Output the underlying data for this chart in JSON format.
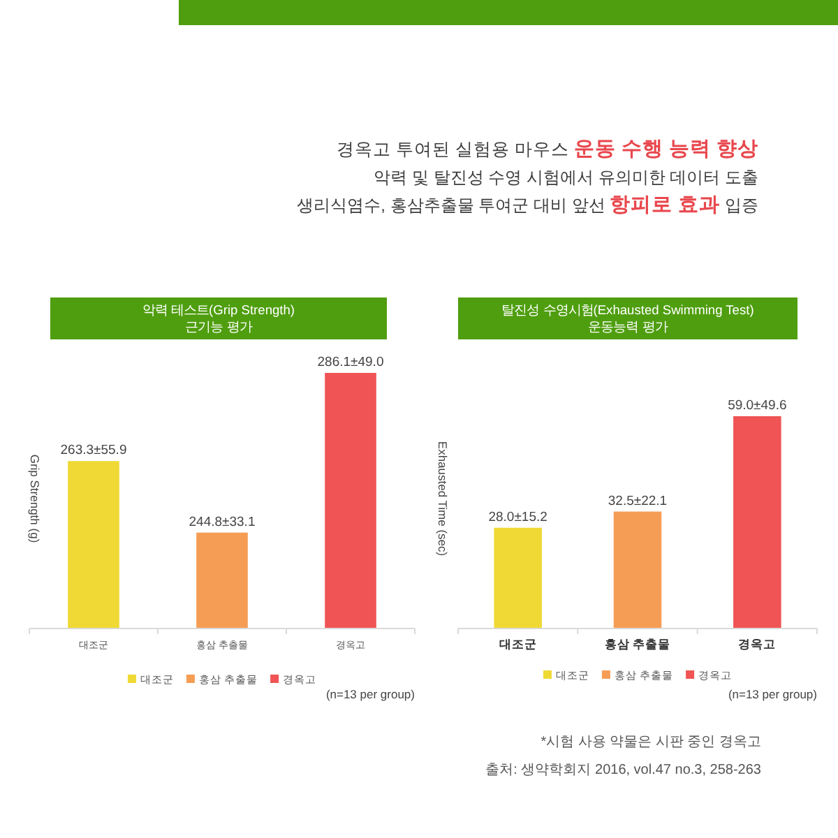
{
  "chart_data": [
    {
      "type": "other",
      "title": "경옥고 투여된 실험용 마우스 **운동 수행 능력 향상**",
      "annotations": [
        "악력 및 탈진성 수영 시험에서 유의미한 데이터 도출",
        "생리식염수, 홍삼추출물 투여군 대비 앞선 **항피로 효과** 입증"
      ]
    },
    {
      "type": "bar",
      "title": "악력 테스트(Grip Strength)\n근기능 평가",
      "ylabel": "Grip Strength (g)",
      "categories": [
        "대조군",
        "홍삼 추출물",
        "경옥고"
      ],
      "stacked": true,
      "series": [
        {
          "name": "대조군",
          "color": "#f0d935",
          "values": [
            263.3,
            null,
            null
          ],
          "value_labels": [
            "263.3±55.9",
            null,
            null
          ]
        },
        {
          "name": "홍삼 추출물",
          "color": "#f59d55",
          "values": [
            null,
            244.8,
            null
          ],
          "value_labels": [
            null,
            "244.8±33.1",
            null
          ]
        },
        {
          "name": "경옥고",
          "color": "#f05454",
          "values": [
            null,
            null,
            286.1
          ],
          "value_labels": [
            null,
            null,
            "286.1±49.0"
          ]
        }
      ],
      "ylim": [
        220,
        286.1
      ],
      "tick_labels": "x",
      "legend": "bottom",
      "annotations": [
        "(n=13 per group)"
      ]
    },
    {
      "type": "bar",
      "title": "탈진성 수영시험(Exhausted Swimming Test)\n운동능력 평가",
      "ylabel": "Exhausted Time (sec)",
      "categories": [
        "대조군",
        "홍삼 추출물",
        "경옥고"
      ],
      "stacked": true,
      "series": [
        {
          "name": "대조군",
          "color": "#f0d935",
          "values": [
            28.0,
            null,
            null
          ],
          "value_labels": [
            "28.0±15.2",
            null,
            null
          ]
        },
        {
          "name": "홍삼 추출물",
          "color": "#f59d55",
          "values": [
            null,
            32.5,
            null
          ],
          "value_labels": [
            null,
            "32.5±22.1",
            null
          ]
        },
        {
          "name": "경옥고",
          "color": "#f05454",
          "values": [
            null,
            null,
            59.0
          ],
          "value_labels": [
            null,
            null,
            "59.0±49.6"
          ]
        }
      ],
      "ylim": [
        0,
        59.0
      ],
      "tick_labels": "x",
      "legend": "bottom",
      "annotations": [
        "(n=13 per group)"
      ]
    },
    {
      "type": "other",
      "annotations": [
        "*시험 사용 약물은 시판 중인 경옥고",
        "출처: 생약학회지 2016, vol.47 no.3, 258-263"
      ]
    }
  ]
}
